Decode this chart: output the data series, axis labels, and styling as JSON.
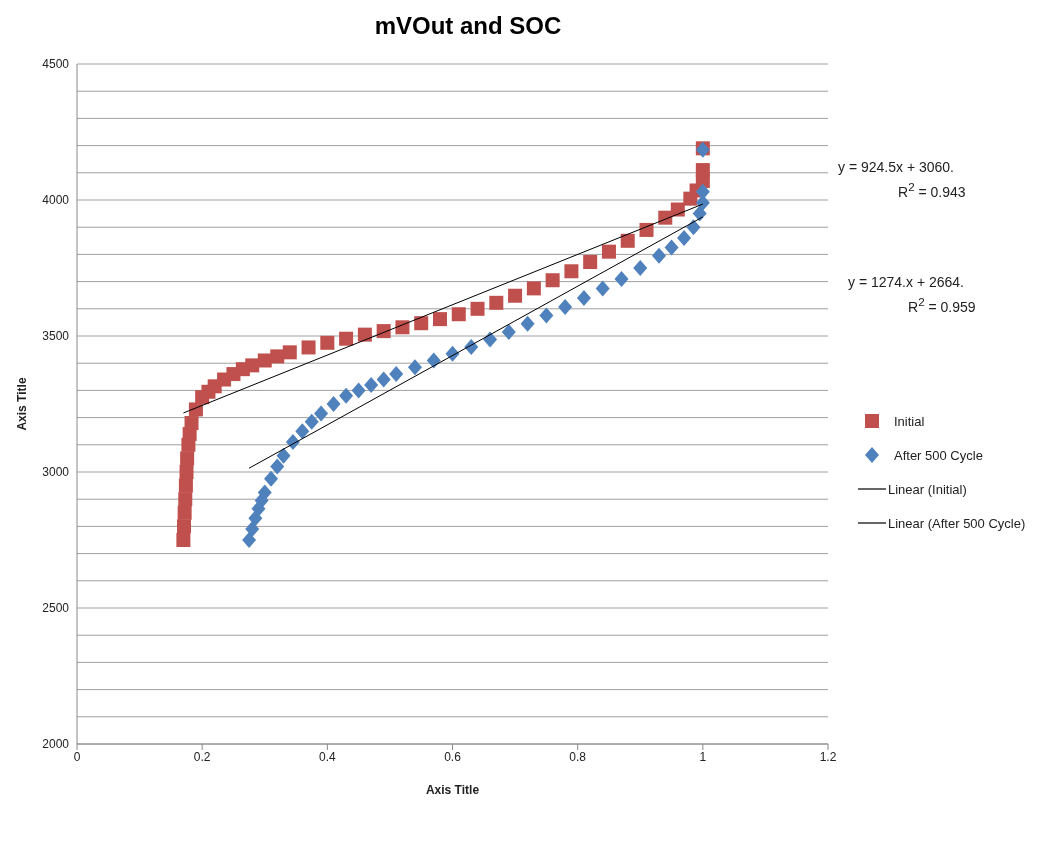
{
  "chart_data": {
    "type": "scatter",
    "title": "mVOut and SOC",
    "xlabel": "Axis Title",
    "ylabel": "Axis Title",
    "xlim": [
      0,
      1.2
    ],
    "xticks": [
      0,
      0.2,
      0.4,
      0.6,
      0.8,
      1,
      1.2
    ],
    "ylim": [
      2000,
      4500
    ],
    "yticks": [
      2000,
      {
        "value": 2100,
        "label": null
      },
      {
        "value": 2200,
        "label": null
      },
      {
        "value": 2300,
        "label": null
      },
      {
        "value": 2400,
        "label": null
      },
      2500,
      {
        "value": 2600,
        "label": null
      },
      {
        "value": 2700,
        "label": null
      },
      {
        "value": 2800,
        "label": null
      },
      {
        "value": 2900,
        "label": null
      },
      3000,
      {
        "value": 3100,
        "label": null
      },
      {
        "value": 3200,
        "label": null
      },
      {
        "value": 3300,
        "label": null
      },
      {
        "value": 3400,
        "label": null
      },
      3500,
      {
        "value": 3600,
        "label": null
      },
      {
        "value": 3700,
        "label": null
      },
      {
        "value": 3800,
        "label": null
      },
      {
        "value": 3900,
        "label": null
      },
      4000,
      {
        "value": 4100,
        "label": null
      },
      {
        "value": 4200,
        "label": null
      },
      {
        "value": 4300,
        "label": null
      },
      {
        "value": 4400,
        "label": null
      },
      4500
    ],
    "grid": "y",
    "legend": "right",
    "series": [
      {
        "name": "Initial",
        "color": "#c0504d",
        "marker": "square",
        "x": [
          0.17,
          0.171,
          0.172,
          0.173,
          0.174,
          0.175,
          0.176,
          0.178,
          0.18,
          0.183,
          0.19,
          0.2,
          0.21,
          0.22,
          0.235,
          0.25,
          0.265,
          0.28,
          0.3,
          0.32,
          0.34,
          0.37,
          0.4,
          0.43,
          0.46,
          0.49,
          0.52,
          0.55,
          0.58,
          0.61,
          0.64,
          0.67,
          0.7,
          0.73,
          0.76,
          0.79,
          0.82,
          0.85,
          0.88,
          0.91,
          0.94,
          0.96,
          0.98,
          0.99,
          1.0,
          1.0,
          1.0
        ],
        "values": [
          2750,
          2800,
          2850,
          2900,
          2950,
          3000,
          3050,
          3100,
          3140,
          3180,
          3230,
          3275,
          3295,
          3315,
          3340,
          3360,
          3378,
          3392,
          3410,
          3425,
          3440,
          3458,
          3475,
          3490,
          3505,
          3518,
          3532,
          3547,
          3562,
          3580,
          3600,
          3622,
          3648,
          3675,
          3705,
          3738,
          3772,
          3810,
          3850,
          3890,
          3935,
          3965,
          4005,
          4035,
          4070,
          4110,
          4190
        ]
      },
      {
        "name": "After 500 Cycle",
        "color": "#4f81bd",
        "marker": "diamond",
        "x": [
          0.275,
          0.28,
          0.285,
          0.29,
          0.295,
          0.3,
          0.31,
          0.32,
          0.33,
          0.345,
          0.36,
          0.375,
          0.39,
          0.41,
          0.43,
          0.45,
          0.47,
          0.49,
          0.51,
          0.54,
          0.57,
          0.6,
          0.63,
          0.66,
          0.69,
          0.72,
          0.75,
          0.78,
          0.81,
          0.84,
          0.87,
          0.9,
          0.93,
          0.95,
          0.97,
          0.985,
          0.995,
          1.0,
          1.0,
          1.0
        ],
        "values": [
          2750,
          2790,
          2830,
          2865,
          2895,
          2925,
          2975,
          3020,
          3060,
          3110,
          3150,
          3185,
          3215,
          3250,
          3280,
          3300,
          3320,
          3340,
          3360,
          3385,
          3410,
          3435,
          3460,
          3487,
          3515,
          3545,
          3575,
          3607,
          3640,
          3675,
          3710,
          3750,
          3795,
          3825,
          3860,
          3900,
          3950,
          3990,
          4030,
          4185
        ]
      },
      {
        "name": "Linear (Initial)",
        "type": "line",
        "color": "#000000",
        "marker": "none",
        "x": [
          0.17,
          1.0
        ],
        "values": [
          3217,
          3985
        ]
      },
      {
        "name": "Linear (After 500 Cycle)",
        "type": "line",
        "color": "#000000",
        "marker": "none",
        "x": [
          0.275,
          1.0
        ],
        "values": [
          3014,
          3938
        ]
      }
    ],
    "annotations": [
      "y = 924.5x + 3060.",
      "R$^{2}$ = 0.943",
      "y = 1274.x + 2664.",
      "R$^{2}$ = 0.959"
    ]
  }
}
